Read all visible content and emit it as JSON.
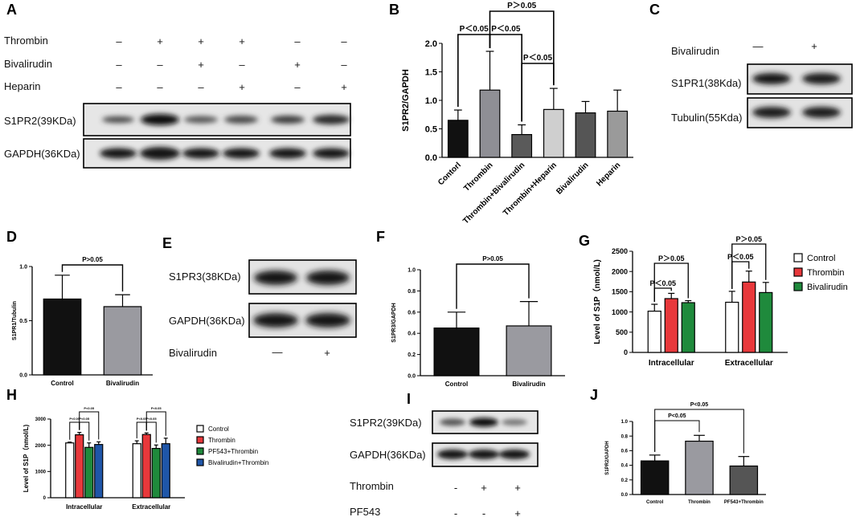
{
  "panels": {
    "A": {
      "label": "A",
      "rows": [
        {
          "name": "Thrombin",
          "signs": [
            "–",
            "+",
            "+",
            "+",
            "–",
            "–"
          ]
        },
        {
          "name": "Bivalirudin",
          "signs": [
            "–",
            "–",
            "+",
            "–",
            "+",
            "–"
          ]
        },
        {
          "name": "Heparin",
          "signs": [
            "–",
            "–",
            "–",
            "+",
            "–",
            "+"
          ]
        }
      ],
      "blots": [
        "S1PR2(39KDa)",
        "GAPDH(36KDa)"
      ]
    },
    "B": {
      "label": "B"
    },
    "C": {
      "label": "C",
      "treatment": "Bivalirudin",
      "signs": [
        "—",
        "+"
      ],
      "blots": [
        "S1PR1(38Kda)",
        "Tubulin(55Kda)"
      ]
    },
    "D": {
      "label": "D"
    },
    "E": {
      "label": "E",
      "blots": [
        "S1PR3(38KDa)",
        "GAPDH(36KDa)"
      ],
      "treatment": "Bivalirudin",
      "signs": [
        "—",
        "+"
      ]
    },
    "F": {
      "label": "F"
    },
    "G": {
      "label": "G"
    },
    "H": {
      "label": "H"
    },
    "I": {
      "label": "I",
      "blots": [
        "S1PR2(39KDa)",
        "GAPDH(36KDa)"
      ],
      "rows": [
        {
          "name": "Thrombin",
          "signs": [
            "-",
            "+",
            "+"
          ]
        },
        {
          "name": "PF543",
          "signs": [
            "-",
            "-",
            "+"
          ]
        }
      ]
    },
    "J": {
      "label": "J"
    }
  },
  "chart_data": [
    {
      "id": "B",
      "type": "bar",
      "ylabel": "S1PR2/GAPDH",
      "ylim": [
        0,
        2.0
      ],
      "yticks": [
        "0.0",
        "0.5",
        "1.0",
        "1.5",
        "2.0"
      ],
      "categories": [
        "Contorl",
        "Thrombin",
        "Thrombin+Bivalirudin",
        "Thrombin+Heparin",
        "Bivalirudin",
        "Heparin"
      ],
      "values": [
        0.65,
        1.18,
        0.4,
        0.84,
        0.78,
        0.81
      ],
      "errors": [
        0.18,
        0.68,
        0.17,
        0.37,
        0.2,
        0.37
      ],
      "colors": [
        "#111111",
        "#8f8f95",
        "#5a5a5a",
        "#cfcfcf",
        "#555555",
        "#9a9a9a"
      ],
      "annotations": [
        {
          "text": "P＜0.05",
          "from": 0,
          "to": 1
        },
        {
          "text": "P＜0.05",
          "from": 1,
          "to": 2
        },
        {
          "text": "P＜0.05",
          "from": 2,
          "to": 3
        },
        {
          "text": "P＞0.05",
          "from": 1,
          "to": 3
        }
      ]
    },
    {
      "id": "D",
      "type": "bar",
      "ylabel": "S1PR1/Tubulin",
      "ylim": [
        0,
        1.0
      ],
      "yticks": [
        "0.0",
        "0.5",
        "1.0"
      ],
      "categories": [
        "Control",
        "Bivalirudin"
      ],
      "values": [
        0.7,
        0.63
      ],
      "errors": [
        0.22,
        0.11
      ],
      "colors": [
        "#111111",
        "#9a9aa0"
      ],
      "annotations": [
        {
          "text": "P>0.05",
          "from": 0,
          "to": 1
        }
      ]
    },
    {
      "id": "F",
      "type": "bar",
      "ylabel": "S1PR3/GAPDH",
      "ylim": [
        0,
        1.0
      ],
      "yticks": [
        "0.0",
        "0.2",
        "0.4",
        "0.6",
        "0.8",
        "1.0"
      ],
      "categories": [
        "Control",
        "Bivalirudin"
      ],
      "values": [
        0.45,
        0.47
      ],
      "errors": [
        0.15,
        0.23
      ],
      "colors": [
        "#111111",
        "#9a9aa0"
      ],
      "annotations": [
        {
          "text": "P>0.05",
          "from": 0,
          "to": 1
        }
      ]
    },
    {
      "id": "G",
      "type": "bar",
      "ylabel": "Level of S1P（nmol/L)",
      "ylim": [
        0,
        2500
      ],
      "yticks": [
        "0",
        "500",
        "1000",
        "1500",
        "2000",
        "2500"
      ],
      "categories": [
        "Intracellular",
        "Extracellular"
      ],
      "series": [
        {
          "name": "Control",
          "values": [
            1020,
            1240
          ],
          "errors": [
            170,
            270
          ],
          "color": "#ffffff"
        },
        {
          "name": "Thrombin",
          "values": [
            1330,
            1740
          ],
          "errors": [
            130,
            270
          ],
          "color": "#e8383b"
        },
        {
          "name": "Bivalirudin",
          "values": [
            1230,
            1480
          ],
          "errors": [
            50,
            250
          ],
          "color": "#1f8a3c"
        }
      ],
      "annotations": [
        {
          "text": "P＜0.05",
          "group": 0,
          "from": 0,
          "to": 1
        },
        {
          "text": "P＞0.05",
          "group": 0,
          "from": 0,
          "to": 2
        },
        {
          "text": "P＜0.05",
          "group": 1,
          "from": 0,
          "to": 1
        },
        {
          "text": "P＞0.05",
          "group": 1,
          "from": 0,
          "to": 2
        }
      ]
    },
    {
      "id": "H",
      "type": "bar",
      "ylabel": "Level of S1P（nmol/L)",
      "ylim": [
        0,
        3000
      ],
      "yticks": [
        "0",
        "1000",
        "2000",
        "3000"
      ],
      "categories": [
        "Intracellular",
        "Extracellular"
      ],
      "series": [
        {
          "name": "Control",
          "values": [
            2090,
            2060
          ],
          "errors": [
            30,
            110
          ],
          "color": "#ffffff"
        },
        {
          "name": "Thrombin",
          "values": [
            2400,
            2410
          ],
          "errors": [
            90,
            60
          ],
          "color": "#e8383b"
        },
        {
          "name": "PF543+Thrombin",
          "values": [
            1920,
            1880
          ],
          "errors": [
            170,
            130
          ],
          "color": "#1f8a3c"
        },
        {
          "name": "Bivalirudin+Thrombin",
          "values": [
            2030,
            2060
          ],
          "errors": [
            100,
            210
          ],
          "color": "#1f56a8"
        }
      ],
      "annotations": [
        {
          "text": "P<0.05",
          "group": 0,
          "from": 0,
          "to": 1
        },
        {
          "text": "P<0.05",
          "group": 0,
          "from": 1,
          "to": 2
        },
        {
          "text": "P<0.05",
          "group": 0,
          "from": 1,
          "to": 3
        },
        {
          "text": "P<0.05",
          "group": 1,
          "from": 0,
          "to": 1
        },
        {
          "text": "P<0.05",
          "group": 1,
          "from": 1,
          "to": 2
        },
        {
          "text": "P<0.05",
          "group": 1,
          "from": 1,
          "to": 3
        }
      ]
    },
    {
      "id": "J",
      "type": "bar",
      "ylabel": "S1PR2/GAPDH",
      "ylim": [
        0,
        1.0
      ],
      "yticks": [
        "0.0",
        "0.2",
        "0.4",
        "0.6",
        "0.8",
        "1.0"
      ],
      "categories": [
        "Control",
        "Thrombin",
        "PF543+Thrombin"
      ],
      "values": [
        0.46,
        0.73,
        0.39
      ],
      "errors": [
        0.08,
        0.08,
        0.13
      ],
      "colors": [
        "#111111",
        "#9a9aa0",
        "#555555"
      ],
      "annotations": [
        {
          "text": "P<0.05",
          "from": 0,
          "to": 1
        },
        {
          "text": "P<0.05",
          "from": 0,
          "to": 2
        }
      ]
    }
  ]
}
